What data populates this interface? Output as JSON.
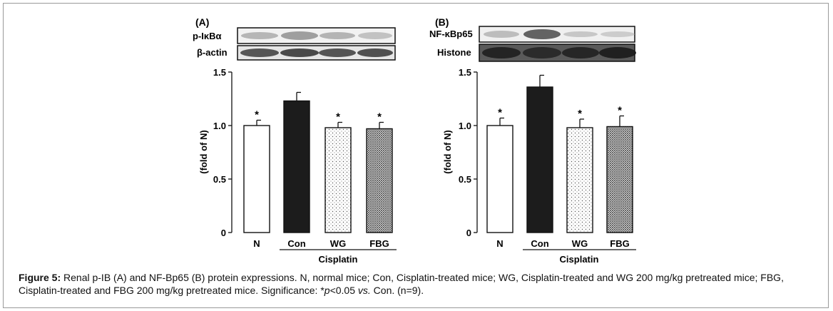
{
  "figure": {
    "caption_label": "Figure 5:",
    "caption_pre": " Renal p-IB (A) and NF-Bp65 (B) protein expressions. N, normal mice; Con, Cisplatin-treated mice; WG, Cisplatin-treated and WG 200 mg/kg pretreated mice; FBG, Cisplatin-treated and FBG 200 mg/kg pretreated mice. Significance: *",
    "caption_p": "p",
    "caption_mid": "<0.05 ",
    "caption_vs": "vs.",
    "caption_post": " Con. (n=9)."
  },
  "chart_data": [
    {
      "type": "bar",
      "panel_label": "(A)",
      "blots": [
        "p-IκBα",
        "β-actin"
      ],
      "categories": [
        "N",
        "Con",
        "WG",
        "FBG"
      ],
      "group_label": "Cisplatin",
      "values": [
        1.0,
        1.23,
        0.98,
        0.97
      ],
      "errors": [
        0.05,
        0.08,
        0.05,
        0.06
      ],
      "significance": [
        "*",
        "",
        "*",
        "*"
      ],
      "fills": [
        "white",
        "black",
        "dots-sparse",
        "dots-dense"
      ],
      "ylabel": "(fold of N)",
      "ylim": [
        0,
        1.5
      ],
      "yticks": [
        0,
        0.5,
        1.0,
        1.5
      ],
      "ytick_labels": [
        "0",
        "0.5",
        "1.0",
        "1.5"
      ]
    },
    {
      "type": "bar",
      "panel_label": "(B)",
      "blots": [
        "NF-κBp65",
        "Histone"
      ],
      "categories": [
        "N",
        "Con",
        "WG",
        "FBG"
      ],
      "group_label": "Cisplatin",
      "values": [
        1.0,
        1.36,
        0.98,
        0.99
      ],
      "errors": [
        0.07,
        0.11,
        0.08,
        0.1
      ],
      "significance": [
        "*",
        "",
        "*",
        "*"
      ],
      "fills": [
        "white",
        "black",
        "dots-sparse",
        "dots-dense"
      ],
      "ylabel": "(fold of N)",
      "ylim": [
        0,
        1.5
      ],
      "yticks": [
        0,
        0.5,
        1.0,
        1.5
      ],
      "ytick_labels": [
        "0",
        "0.5",
        "1.0",
        "1.5"
      ]
    }
  ]
}
